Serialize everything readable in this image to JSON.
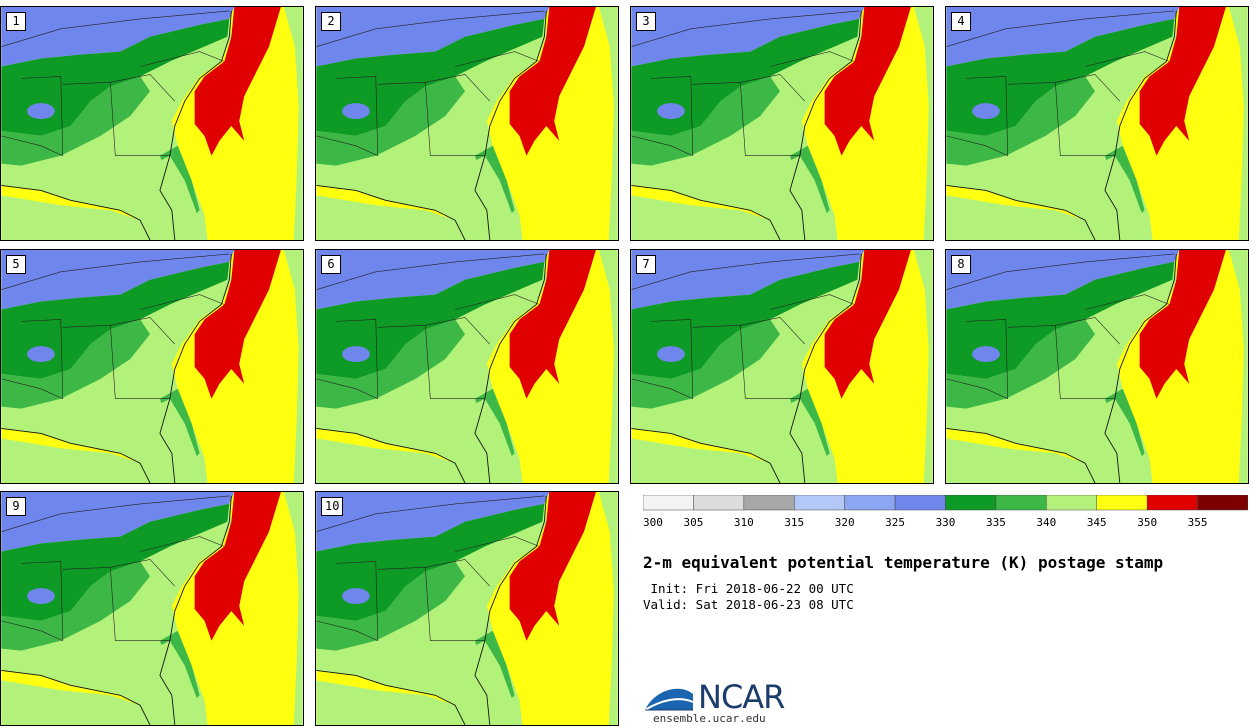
{
  "title": "2-m equivalent potential temperature (K) postage stamp",
  "init_text": " Init: Fri 2018-06-22 00 UTC",
  "valid_text": "Valid: Sat 2018-06-23 08 UTC",
  "logo": {
    "name": "NCAR",
    "url": "ensemble.ucar.edu"
  },
  "colors": {
    "cold": "#6f86ec",
    "green_dark": "#0d9a25",
    "green_mid": "#3db846",
    "green_light": "#b3f27a",
    "yellow": "#ffff10",
    "red": "#e00000",
    "border": "#222222"
  },
  "legend": {
    "bins": [
      {
        "from": 300,
        "to": 305,
        "color": "#f3f3f3"
      },
      {
        "from": 305,
        "to": 310,
        "color": "#dcdcdc"
      },
      {
        "from": 310,
        "to": 315,
        "color": "#a8a8a8"
      },
      {
        "from": 315,
        "to": 320,
        "color": "#b4c8f7"
      },
      {
        "from": 320,
        "to": 325,
        "color": "#8da6f3"
      },
      {
        "from": 325,
        "to": 330,
        "color": "#6f86ec"
      },
      {
        "from": 330,
        "to": 335,
        "color": "#0d9a25"
      },
      {
        "from": 335,
        "to": 340,
        "color": "#3db846"
      },
      {
        "from": 340,
        "to": 345,
        "color": "#b3f27a"
      },
      {
        "from": 345,
        "to": 350,
        "color": "#ffff10"
      },
      {
        "from": 350,
        "to": 355,
        "color": "#e00000"
      },
      {
        "from": 355,
        "to": 360,
        "color": "#7d0000"
      }
    ],
    "tick_labels": [
      "300",
      "305",
      "310",
      "315",
      "320",
      "325",
      "330",
      "335",
      "340",
      "345",
      "350",
      "355"
    ]
  },
  "members": [
    "1",
    "2",
    "3",
    "4",
    "5",
    "6",
    "7",
    "8",
    "9",
    "10"
  ]
}
